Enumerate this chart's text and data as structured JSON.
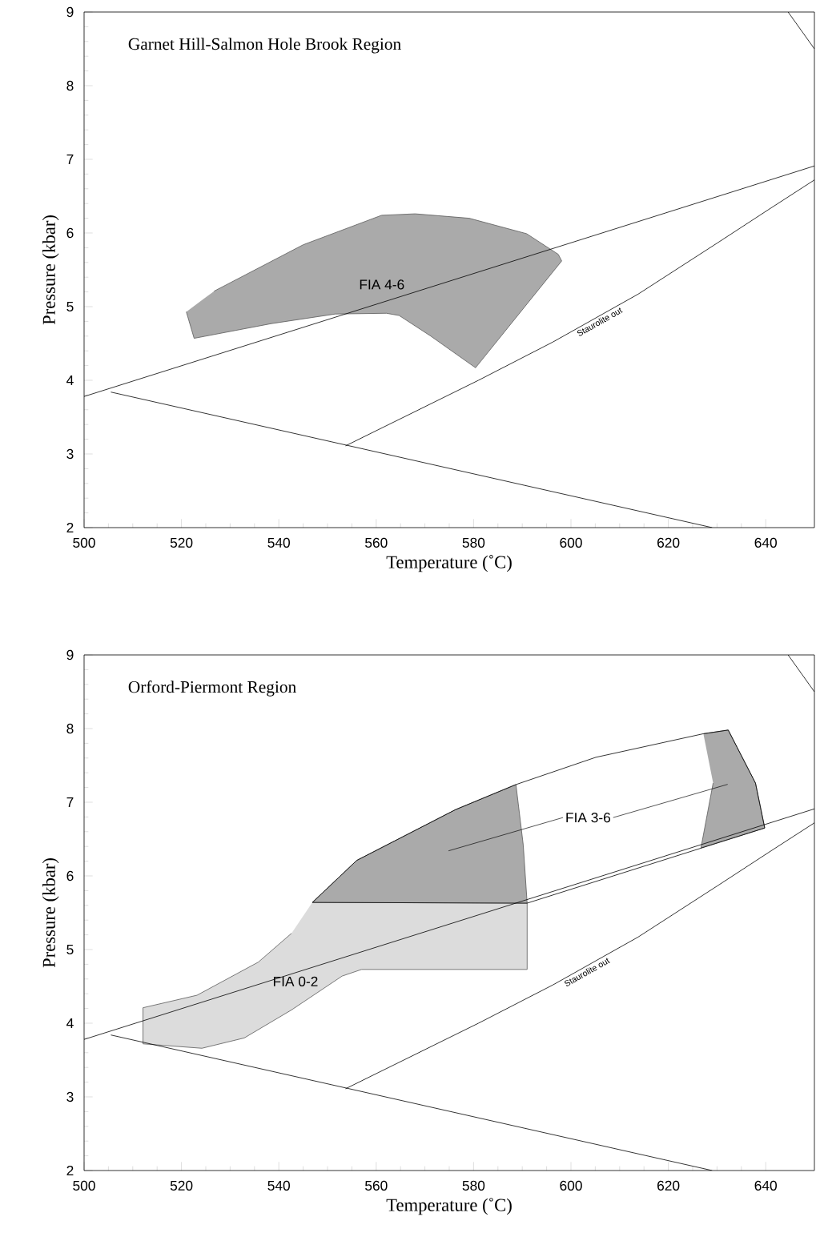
{
  "chart_data": [
    {
      "type": "line",
      "title": "Garnet Hill-Salmon Hole Brook Region",
      "xlabel": "Temperature (˚C)",
      "ylabel": "Pressure (kbar)",
      "xlim": [
        500,
        650
      ],
      "ylim": [
        2,
        9
      ],
      "xticks": [
        500,
        520,
        540,
        560,
        580,
        600,
        620,
        640
      ],
      "yticks": [
        2,
        3,
        4,
        5,
        6,
        7,
        8,
        9
      ],
      "series": [
        {
          "type": "area",
          "name": "FIA 4-6",
          "color": "#aaaaaa",
          "x": [
            521,
            522.6,
            538.5,
            551.6,
            562.1,
            564.7,
            571.2,
            580.4,
            598.1,
            597.4,
            590.9,
            579.1,
            568,
            561.1,
            545,
            526.7
          ],
          "values": [
            4.93,
            4.57,
            4.77,
            4.9,
            4.91,
            4.88,
            4.6,
            4.17,
            5.62,
            5.71,
            5.99,
            6.2,
            6.26,
            6.24,
            5.84,
            5.21
          ]
        },
        {
          "color": "#000000",
          "x": [
            500,
            650
          ],
          "values": [
            3.78,
            6.91
          ]
        },
        {
          "color": "#000000",
          "x": [
            505.5,
            629
          ],
          "values": [
            3.84,
            2.0
          ]
        },
        {
          "color": "#000000",
          "x": [
            553.7,
            581,
            596.3,
            613.8,
            630.2,
            641.1,
            650
          ],
          "values": [
            3.11,
            4.0,
            4.52,
            5.17,
            5.87,
            6.34,
            6.72
          ]
        },
        {
          "color": "#000000",
          "x": [
            644.6,
            650
          ],
          "values": [
            9,
            8.5
          ]
        }
      ],
      "annotations": [
        {
          "text": "Staurolite out",
          "x": 605.3,
          "y": 4.86
        }
      ]
    },
    {
      "type": "line",
      "title": "Orford-Piermont Region",
      "xlabel": "Temperature (˚C)",
      "ylabel": "Pressure (kbar)",
      "xlim": [
        500,
        650
      ],
      "ylim": [
        2,
        9
      ],
      "xticks": [
        500,
        520,
        540,
        560,
        580,
        600,
        620,
        640
      ],
      "yticks": [
        2,
        3,
        4,
        5,
        6,
        7,
        8,
        9
      ],
      "series": [
        {
          "type": "area",
          "name": "FIA 0-2",
          "color": "#dcdcdc",
          "x": [
            546.9,
            591,
            591,
            557,
            553,
            542.6,
            532.9,
            524.2,
            512.1,
            512.1,
            523.2,
            535.8,
            542.6
          ],
          "values": [
            5.64,
            5.63,
            4.73,
            4.73,
            4.64,
            4.18,
            3.8,
            3.66,
            3.72,
            4.21,
            4.38,
            4.83,
            5.22
          ]
        },
        {
          "type": "area",
          "name": "FIA 3-6",
          "color": "#aaaaaa",
          "x": [
            546.9,
            556,
            576.3,
            588.7,
            590.2,
            591
          ],
          "values": [
            5.64,
            6.21,
            6.9,
            7.24,
            6.42,
            5.63
          ]
        },
        {
          "type": "area",
          "color": "#aaaaaa",
          "x": [
            627.2,
            632.3,
            637.9,
            639.8,
            626.7,
            629.2
          ],
          "values": [
            7.93,
            7.98,
            7.26,
            6.65,
            6.38,
            7.26
          ]
        },
        {
          "color": "#000000",
          "x": [
            546.9,
            556,
            576.3,
            588.7,
            605.1,
            627.2,
            632.3,
            637.9,
            639.8
          ],
          "values": [
            5.64,
            6.21,
            6.9,
            7.24,
            7.61,
            7.93,
            7.98,
            7.26,
            6.65
          ]
        },
        {
          "color": "#000000",
          "x": [
            546.9,
            591,
            639.8
          ],
          "values": [
            5.64,
            5.63,
            6.65
          ]
        },
        {
          "color": "#000000",
          "x": [
            500,
            650
          ],
          "values": [
            3.78,
            6.91
          ]
        },
        {
          "color": "#000000",
          "x": [
            505.5,
            629
          ],
          "values": [
            3.84,
            2.0
          ]
        },
        {
          "color": "#000000",
          "x": [
            553.7,
            581,
            596.3,
            613.8,
            630.2,
            641.1,
            650
          ],
          "values": [
            3.11,
            4.0,
            4.52,
            5.17,
            5.87,
            6.34,
            6.72
          ]
        },
        {
          "color": "#000000",
          "x": [
            644.6,
            650
          ],
          "values": [
            9,
            8.5
          ]
        }
      ],
      "annotations": [
        {
          "text": "Staurolite out",
          "x": 602.7,
          "y": 4.76
        }
      ]
    }
  ]
}
